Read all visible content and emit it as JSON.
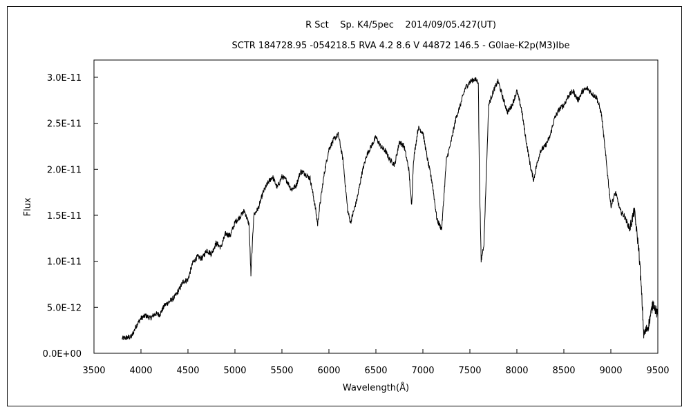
{
  "chart_data": {
    "type": "line",
    "title_line1": "R Sct    Sp. K4/5pec    2014/09/05.427(UT)",
    "title_line2": "SCTR 184728.95 -054218.5 RVA 4.2 8.6 V 44872 146.5 - G0Iae-K2p(M3)Ibe",
    "xlabel": "Wavelength(Å)",
    "ylabel": "Flux",
    "xlim": [
      3500,
      9500
    ],
    "ylim": [
      0,
      3e-11
    ],
    "x_ticks": [
      3500,
      4000,
      4500,
      5000,
      5500,
      6000,
      6500,
      7000,
      7500,
      8000,
      8500,
      9000,
      9500
    ],
    "x_tick_labels": [
      "3500",
      "4000",
      "4500",
      "5000",
      "5500",
      "6000",
      "6500",
      "7000",
      "7500",
      "8000",
      "8500",
      "9000",
      "9500"
    ],
    "y_ticks": [
      0,
      5e-12,
      1e-11,
      1.5e-11,
      2e-11,
      2.5e-11,
      3e-11
    ],
    "y_tick_labels": [
      "0.0E+00",
      "5.0E-12",
      "1.0E-11",
      "1.5E-11",
      "2.0E-11",
      "2.5E-11",
      "3.0E-11"
    ],
    "grid": false,
    "line_color": "#000000",
    "series": [
      {
        "x": [
          3800,
          3850,
          3900,
          3950,
          4000,
          4050,
          4100,
          4150,
          4200,
          4250,
          4300,
          4350,
          4400,
          4450,
          4500,
          4550,
          4600,
          4650,
          4700,
          4750,
          4800,
          4850,
          4900,
          4950,
          5000,
          5050,
          5100,
          5150,
          5170,
          5200,
          5250,
          5300,
          5350,
          5400,
          5450,
          5500,
          5550,
          5600,
          5650,
          5700,
          5750,
          5800,
          5850,
          5880,
          5900,
          5950,
          6000,
          6050,
          6100,
          6150,
          6200,
          6230,
          6300,
          6350,
          6400,
          6450,
          6500,
          6550,
          6600,
          6650,
          6700,
          6750,
          6800,
          6850,
          6880,
          6900,
          6950,
          7000,
          7050,
          7100,
          7150,
          7200,
          7250,
          7300,
          7350,
          7400,
          7450,
          7500,
          7550,
          7590,
          7600,
          7620,
          7650,
          7700,
          7750,
          7800,
          7850,
          7900,
          7950,
          8000,
          8050,
          8100,
          8150,
          8180,
          8200,
          8250,
          8300,
          8350,
          8400,
          8450,
          8500,
          8550,
          8600,
          8650,
          8700,
          8750,
          8800,
          8850,
          8900,
          8950,
          9000,
          9050,
          9100,
          9150,
          9200,
          9250,
          9300,
          9330,
          9350,
          9400,
          9450,
          9500
        ],
        "y": [
          1.6e-12,
          1.7e-12,
          1.8e-12,
          3e-12,
          3.8e-12,
          4.1e-12,
          3.8e-12,
          4.3e-12,
          4.2e-12,
          5.2e-12,
          5.6e-12,
          6e-12,
          6.8e-12,
          7.8e-12,
          8e-12,
          9.8e-12,
          1.05e-11,
          1.03e-11,
          1.12e-11,
          1.08e-11,
          1.2e-11,
          1.15e-11,
          1.3e-11,
          1.28e-11,
          1.42e-11,
          1.48e-11,
          1.55e-11,
          1.4e-11,
          8.5e-12,
          1.5e-11,
          1.58e-11,
          1.75e-11,
          1.85e-11,
          1.92e-11,
          1.8e-11,
          1.92e-11,
          1.88e-11,
          1.78e-11,
          1.82e-11,
          1.98e-11,
          1.95e-11,
          1.9e-11,
          1.62e-11,
          1.4e-11,
          1.58e-11,
          1.95e-11,
          2.22e-11,
          2.32e-11,
          2.38e-11,
          2.1e-11,
          1.55e-11,
          1.42e-11,
          1.68e-11,
          1.95e-11,
          2.15e-11,
          2.25e-11,
          2.35e-11,
          2.25e-11,
          2.2e-11,
          2.1e-11,
          2.05e-11,
          2.3e-11,
          2.25e-11,
          2e-11,
          1.6e-11,
          2.1e-11,
          2.45e-11,
          2.4e-11,
          2.1e-11,
          1.85e-11,
          1.45e-11,
          1.35e-11,
          2.1e-11,
          2.3e-11,
          2.55e-11,
          2.7e-11,
          2.88e-11,
          2.95e-11,
          2.98e-11,
          2.95e-11,
          2e-11,
          1e-11,
          1.2e-11,
          2.7e-11,
          2.85e-11,
          2.96e-11,
          2.78e-11,
          2.62e-11,
          2.7e-11,
          2.85e-11,
          2.65e-11,
          2.3e-11,
          2e-11,
          1.88e-11,
          2e-11,
          2.2e-11,
          2.25e-11,
          2.35e-11,
          2.55e-11,
          2.65e-11,
          2.7e-11,
          2.8e-11,
          2.85e-11,
          2.75e-11,
          2.85e-11,
          2.88e-11,
          2.82e-11,
          2.78e-11,
          2.6e-11,
          2.1e-11,
          1.6e-11,
          1.75e-11,
          1.55e-11,
          1.48e-11,
          1.35e-11,
          1.55e-11,
          1.1e-11,
          6e-12,
          2e-12,
          3e-12,
          5.5e-12,
          4e-12
        ]
      }
    ]
  }
}
